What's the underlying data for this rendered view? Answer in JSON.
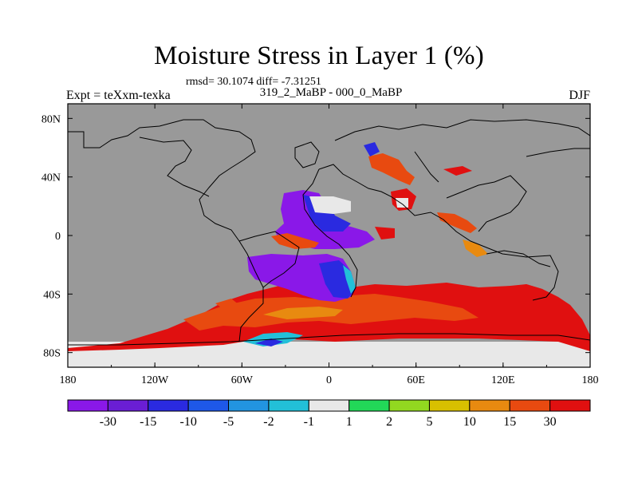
{
  "header": {
    "title": "Moisture Stress in Layer 1 (%)",
    "stats": "rmsd= 30.1074 diff= -7.31251",
    "left": "Expt = teXxm-texka",
    "center": "319_2_MaBP - 000_0_MaBP",
    "right": "DJF"
  },
  "map": {
    "land_color": "#999999",
    "no_data_color": "#e8e8e8",
    "outline_color": "#000000",
    "lon_ticks": [
      "180",
      "120W",
      "60W",
      "0",
      "60E",
      "120E",
      "180"
    ],
    "lat_ticks": [
      "80N",
      "40N",
      "0",
      "40S",
      "80S"
    ]
  },
  "colorbar": {
    "colors": [
      "#8a18e8",
      "#6a1ed4",
      "#2a2ae0",
      "#1e58e8",
      "#2294e0",
      "#22c0d8",
      "#e8e8e8",
      "#22d858",
      "#92d820",
      "#d8c000",
      "#e88a10",
      "#e84a10",
      "#e01010"
    ],
    "labels": [
      "-30",
      "-15",
      "-10",
      "-5",
      "-2",
      "-1",
      "1",
      "2",
      "5",
      "10",
      "15",
      "30"
    ]
  }
}
